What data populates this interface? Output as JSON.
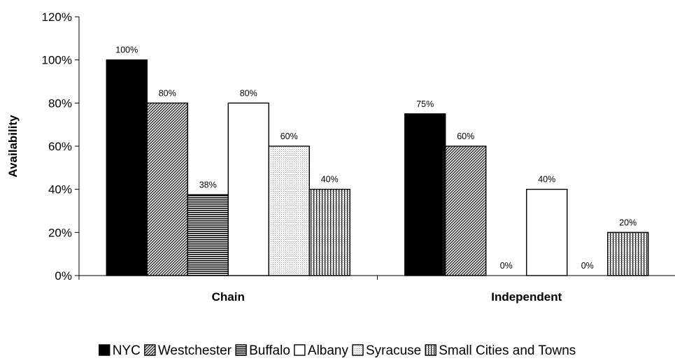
{
  "chart_data": {
    "type": "bar",
    "title": "",
    "xlabel": "",
    "ylabel": "Availability",
    "ylim": [
      0,
      1.2
    ],
    "y_ticks": [
      "0%",
      "20%",
      "40%",
      "60%",
      "80%",
      "100%",
      "120%"
    ],
    "categories": [
      "Chain",
      "Independent"
    ],
    "legend_position": "bottom",
    "grid": false,
    "series": [
      {
        "name": "NYC",
        "pattern": "solid-black",
        "values": [
          1.0,
          0.75
        ],
        "labels": [
          "100%",
          "75%"
        ]
      },
      {
        "name": "Westchester",
        "pattern": "diagonal-hatch",
        "values": [
          0.8,
          0.6
        ],
        "labels": [
          "80%",
          "60%"
        ]
      },
      {
        "name": "Buffalo",
        "pattern": "horizontal-lines",
        "values": [
          0.375,
          0.0
        ],
        "labels": [
          "38%",
          "0%"
        ]
      },
      {
        "name": "Albany",
        "pattern": "white",
        "values": [
          0.8,
          0.4
        ],
        "labels": [
          "80%",
          "40%"
        ]
      },
      {
        "name": "Syracuse",
        "pattern": "light-dots",
        "values": [
          0.6,
          0.0
        ],
        "labels": [
          "60%",
          "0%"
        ]
      },
      {
        "name": "Small Cities and Towns",
        "pattern": "vertical-lines",
        "values": [
          0.4,
          0.2
        ],
        "labels": [
          "40%",
          "20%"
        ]
      }
    ]
  }
}
